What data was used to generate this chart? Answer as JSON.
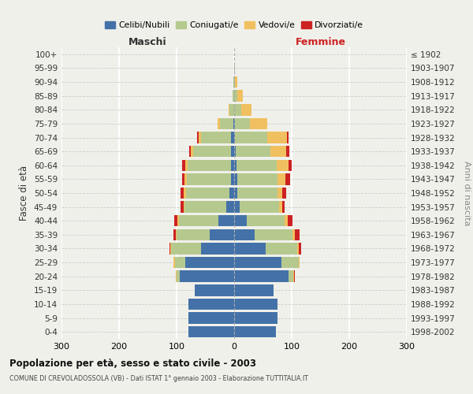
{
  "age_groups": [
    "0-4",
    "5-9",
    "10-14",
    "15-19",
    "20-24",
    "25-29",
    "30-34",
    "35-39",
    "40-44",
    "45-49",
    "50-54",
    "55-59",
    "60-64",
    "65-69",
    "70-74",
    "75-79",
    "80-84",
    "85-89",
    "90-94",
    "95-99",
    "100+"
  ],
  "birth_years": [
    "1998-2002",
    "1993-1997",
    "1988-1992",
    "1983-1987",
    "1978-1982",
    "1973-1977",
    "1968-1972",
    "1963-1967",
    "1958-1962",
    "1953-1957",
    "1948-1952",
    "1943-1947",
    "1938-1942",
    "1933-1937",
    "1928-1932",
    "1923-1927",
    "1918-1922",
    "1913-1917",
    "1908-1912",
    "1903-1907",
    "≤ 1902"
  ],
  "maschi": {
    "celibe": [
      80,
      80,
      80,
      68,
      95,
      85,
      58,
      42,
      28,
      14,
      8,
      6,
      5,
      5,
      5,
      2,
      0,
      0,
      0,
      0,
      0
    ],
    "coniugato": [
      0,
      0,
      0,
      0,
      5,
      18,
      52,
      58,
      68,
      72,
      76,
      76,
      76,
      66,
      52,
      22,
      8,
      3,
      1,
      0,
      0
    ],
    "vedovo": [
      0,
      0,
      0,
      0,
      1,
      2,
      1,
      2,
      2,
      2,
      3,
      4,
      4,
      5,
      5,
      5,
      2,
      0,
      0,
      0,
      0
    ],
    "divorziato": [
      0,
      0,
      0,
      0,
      1,
      0,
      2,
      4,
      6,
      5,
      6,
      5,
      5,
      2,
      2,
      0,
      0,
      0,
      0,
      0,
      0
    ]
  },
  "femmine": {
    "nubile": [
      72,
      75,
      75,
      68,
      95,
      82,
      55,
      36,
      22,
      10,
      5,
      5,
      4,
      3,
      2,
      2,
      0,
      0,
      0,
      0,
      0
    ],
    "coniugata": [
      0,
      0,
      0,
      0,
      8,
      30,
      55,
      65,
      66,
      68,
      70,
      70,
      70,
      60,
      55,
      26,
      12,
      5,
      2,
      1,
      0
    ],
    "vedova": [
      0,
      0,
      0,
      0,
      1,
      2,
      2,
      5,
      5,
      5,
      8,
      14,
      20,
      28,
      35,
      30,
      18,
      10,
      3,
      1,
      0
    ],
    "divorziata": [
      0,
      0,
      0,
      0,
      1,
      0,
      5,
      8,
      8,
      5,
      7,
      8,
      6,
      5,
      2,
      0,
      0,
      0,
      0,
      0,
      0
    ]
  },
  "colors": {
    "celibe": "#4472a8",
    "coniugato": "#b5c98e",
    "vedovo": "#f0c060",
    "divorziato": "#cc2222"
  },
  "xlim": 300,
  "title": "Popolazione per età, sesso e stato civile - 2003",
  "subtitle": "COMUNE DI CREVOLADOSSOLA (VB) - Dati ISTAT 1° gennaio 2003 - Elaborazione TUTTITALIA.IT",
  "ylabel_left": "Fasce di età",
  "ylabel_right": "Anni di nascita",
  "legend_labels": [
    "Celibi/Nubili",
    "Coniugati/e",
    "Vedovi/e",
    "Divorziati/e"
  ],
  "bg_color": "#f0f0eb",
  "maschi_label_color": "#333333",
  "femmine_label_color": "#cc2222"
}
